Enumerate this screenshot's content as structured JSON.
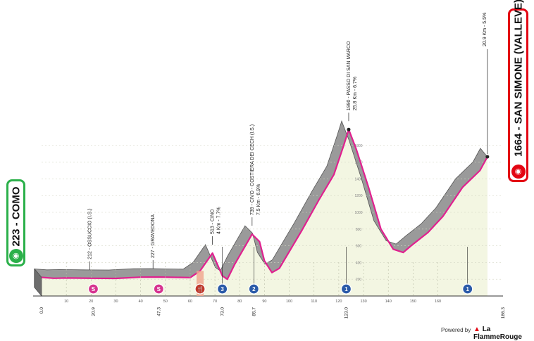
{
  "start": {
    "label": "223 - COMO",
    "icon": "bicycle-icon"
  },
  "finish": {
    "label": "1664 - SAN SIMONE (VALLEVE)",
    "climb": "20.9 Km - 5.5%",
    "icon": "bicycle-icon"
  },
  "footer": {
    "powered_by": "Powered by",
    "brand": "La FlammeRouge"
  },
  "chart_data": {
    "type": "area",
    "xlim": [
      0,
      186.3
    ],
    "ylim": [
      0,
      2000
    ],
    "x_ticks": [
      "10",
      "20",
      "30",
      "40",
      "50",
      "60",
      "70",
      "80",
      "90",
      "100",
      "110",
      "120",
      "130",
      "140",
      "150",
      "160"
    ],
    "y_ticks": [
      "200",
      "400",
      "600",
      "800",
      "1000",
      "1200",
      "1400",
      "1600",
      "1800"
    ],
    "profile": [
      [
        0,
        223
      ],
      [
        5,
        212
      ],
      [
        10,
        215
      ],
      [
        20,
        212
      ],
      [
        30,
        210
      ],
      [
        40,
        225
      ],
      [
        47,
        227
      ],
      [
        60,
        220
      ],
      [
        64,
        300
      ],
      [
        69,
        513
      ],
      [
        73,
        240
      ],
      [
        75,
        200
      ],
      [
        78,
        380
      ],
      [
        85,
        739
      ],
      [
        88,
        650
      ],
      [
        90,
        420
      ],
      [
        93,
        280
      ],
      [
        96,
        330
      ],
      [
        105,
        780
      ],
      [
        112,
        1150
      ],
      [
        118,
        1450
      ],
      [
        122,
        1800
      ],
      [
        124,
        1990
      ],
      [
        127,
        1760
      ],
      [
        132,
        1300
      ],
      [
        137,
        800
      ],
      [
        142,
        560
      ],
      [
        146,
        520
      ],
      [
        150,
        620
      ],
      [
        156,
        760
      ],
      [
        162,
        950
      ],
      [
        170,
        1300
      ],
      [
        177,
        1500
      ],
      [
        180,
        1664
      ]
    ],
    "labels": [
      {
        "km": 19.5,
        "text": "212 - OSSUCCIO (I.S.)"
      },
      {
        "km": 45,
        "text": "227 - GRAVEDONA"
      },
      {
        "km": 69,
        "text": "513 - CINO",
        "sub": "4 Km - 7.7%"
      },
      {
        "km": 85,
        "text": "739 - CIVO - COSTIERA DEI CECH (I.S.)",
        "sub": "7.5 Km - 6.9%"
      },
      {
        "km": 124,
        "text": "1990 - PASSO DI SAN MARCO",
        "sub": "25.8 Km - 6.7%"
      }
    ],
    "km_markers": [
      "0.0",
      "20.9",
      "47.3",
      "73.0",
      "85.7",
      "123.0",
      "186.3"
    ],
    "markers": [
      {
        "km": 20.9,
        "type": "sprint",
        "symbol": "S"
      },
      {
        "km": 47.3,
        "type": "sprint",
        "symbol": "S"
      },
      {
        "km": 64,
        "type": "feed",
        "symbol": "🍴"
      },
      {
        "km": 73,
        "type": "climb",
        "symbol": "3"
      },
      {
        "km": 85.7,
        "type": "climb",
        "symbol": "2"
      },
      {
        "km": 123,
        "type": "climb",
        "symbol": "1"
      },
      {
        "km": 172,
        "type": "climb",
        "symbol": "1"
      }
    ]
  }
}
